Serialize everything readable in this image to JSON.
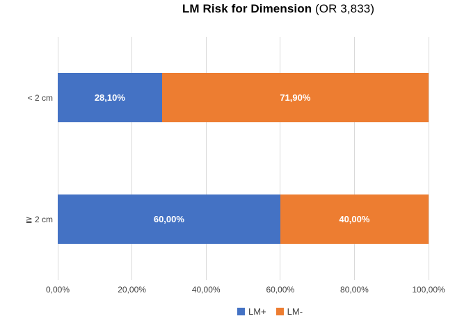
{
  "title": {
    "main": "LM Risk for Dimension",
    "suffix": " (OR 3,833)"
  },
  "chart_data": {
    "type": "bar",
    "orientation": "horizontal",
    "stacked": true,
    "title": "LM Risk for Dimension (OR 3,833)",
    "categories": [
      "< 2 cm",
      "≧ 2 cm"
    ],
    "series": [
      {
        "name": "LM+",
        "color": "#4472C4",
        "values": [
          28.1,
          60.0
        ],
        "labels": [
          "28,10%",
          "60,00%"
        ]
      },
      {
        "name": "LM-",
        "color": "#ED7D31",
        "values": [
          71.9,
          40.0
        ],
        "labels": [
          "71,90%",
          "40,00%"
        ]
      }
    ],
    "xlim": [
      0,
      100
    ],
    "x_ticks": [
      {
        "value": 0,
        "label": "0,00%"
      },
      {
        "value": 20,
        "label": "20,00%"
      },
      {
        "value": 40,
        "label": "40,00%"
      },
      {
        "value": 60,
        "label": "60,00%"
      },
      {
        "value": 80,
        "label": "80,00%"
      },
      {
        "value": 100,
        "label": "100,00%"
      }
    ],
    "grid": true,
    "legend_position": "bottom",
    "colors": {
      "gridline": "#D9D9D9",
      "axis_text": "#404040",
      "data_label": "#FFFFFF",
      "background": "#FFFFFF"
    }
  }
}
